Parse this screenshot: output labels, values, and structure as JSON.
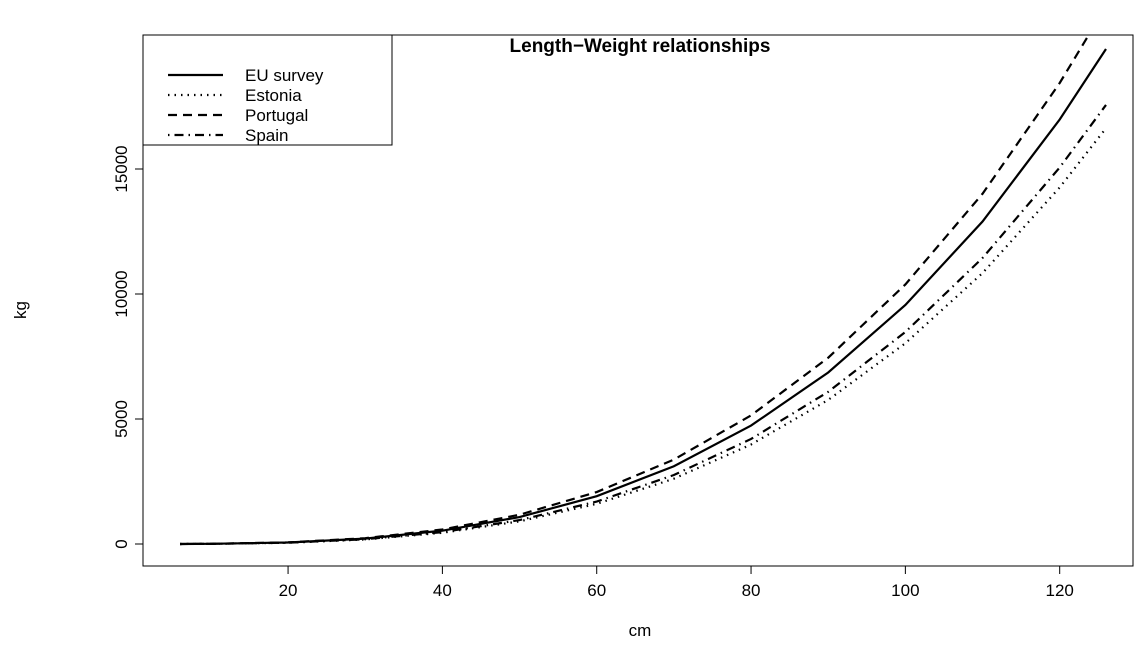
{
  "chart_data": {
    "type": "line",
    "title": "Length−Weight relationships",
    "x_label": "cm",
    "y_label": "kg",
    "x": [
      6,
      10,
      20,
      30,
      40,
      50,
      60,
      70,
      80,
      90,
      100,
      110,
      120,
      126
    ],
    "series": [
      {
        "name": "EU survey",
        "color": "#000000",
        "linestyle": "solid",
        "values": [
          1.4,
          6.8,
          60,
          215,
          534,
          1078,
          1913,
          3110,
          4737,
          6861,
          9560,
          12900,
          16980,
          19800
        ]
      },
      {
        "name": "Estonia",
        "color": "#000000",
        "linestyle": "dotted",
        "values": [
          1.1,
          5.7,
          50,
          181,
          449,
          906,
          1607,
          2612,
          3979,
          5763,
          8030,
          10836,
          14263,
          16632
        ]
      },
      {
        "name": "Portugal",
        "color": "#000000",
        "linestyle": "dashed",
        "values": [
          1.5,
          7.4,
          65,
          233,
          580,
          1171,
          2078,
          3377,
          5144,
          7451,
          10382,
          14009,
          18440,
          21503
        ]
      },
      {
        "name": "Spain",
        "color": "#000000",
        "linestyle": "dotdash",
        "values": [
          1.2,
          6.0,
          53,
          191,
          474,
          956,
          1697,
          2759,
          4202,
          6086,
          8480,
          11442,
          15061,
          17563
        ]
      }
    ],
    "xlim": [
      1.2,
      129.5
    ],
    "ylim": [
      -880,
      20360
    ],
    "xticks": [
      20,
      40,
      60,
      80,
      100,
      120
    ],
    "yticks": [
      0,
      5000,
      10000,
      15000
    ],
    "legend": "top-left"
  }
}
